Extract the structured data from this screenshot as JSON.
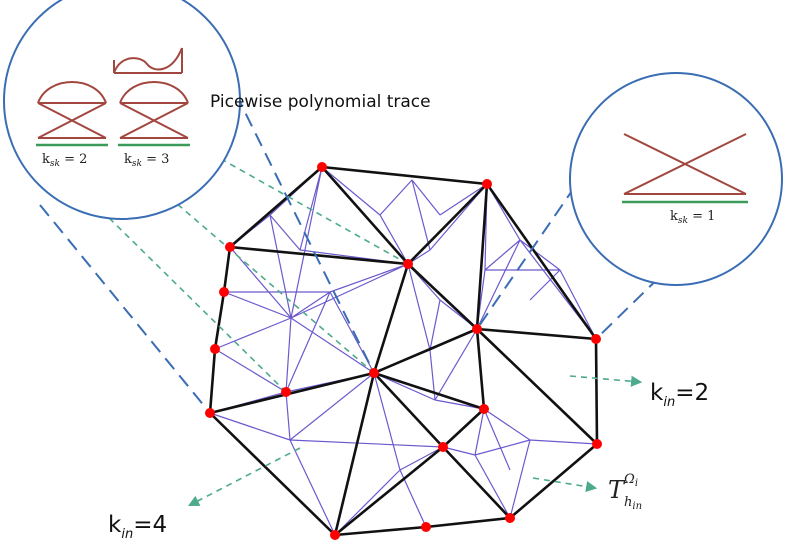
{
  "labels": {
    "trace_title": "Picewise polynomial trace",
    "k_in_2": {
      "base": "k",
      "sub": "in",
      "value": "=2"
    },
    "k_in_4": {
      "base": "k",
      "sub": "in",
      "value": "=4"
    },
    "mesh_symbol": {
      "base": "T",
      "sub": "h",
      "subsub": "in",
      "sup": "Ω",
      "supsub": "i"
    },
    "ksk_1": {
      "base": "k",
      "sub": "sk",
      "value": " = 1"
    },
    "ksk_2": {
      "base": "k",
      "sub": "sk",
      "value": " = 2"
    },
    "ksk_3": {
      "base": "k",
      "sub": "sk",
      "value": " = 3"
    }
  },
  "colors": {
    "coarse_edges": "#111111",
    "fine_edges": "#6a5acd",
    "vertices": "#ff0000",
    "callout_circle": "#3a6db3",
    "callout_dash": "#3a6db3",
    "arrow_dash": "#4daa8c",
    "basis_curves": "#a2473f",
    "trace_underline": "#3a9b5a"
  }
}
